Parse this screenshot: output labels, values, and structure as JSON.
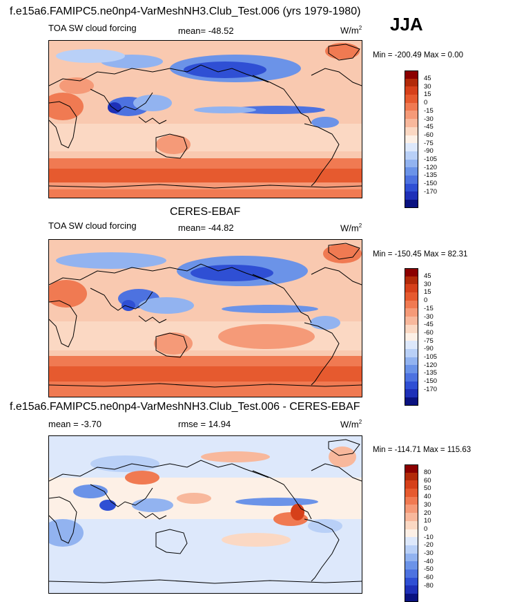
{
  "header": {
    "title": "f.e15a6.FAMIPC5.ne0np4-VarMeshNH3.Club_Test.006 (yrs 1979-1980)",
    "season": "JJA"
  },
  "panels": [
    {
      "heading": "",
      "left_label": "TOA SW cloud forcing",
      "mean_label": "mean= -48.52",
      "units": "W/m",
      "units_sup": "2",
      "minmax": "Min = -200.49 Max =   0.00",
      "palette": "panel_palette",
      "ticks": [
        "45",
        "30",
        "15",
        "0",
        "-15",
        "-30",
        "-45",
        "-60",
        "-75",
        "-90",
        "-105",
        "-120",
        "-135",
        "-150",
        "-170"
      ]
    },
    {
      "heading": "CERES-EBAF",
      "left_label": "TOA SW cloud forcing",
      "mean_label": "mean= -44.82",
      "units": "W/m",
      "units_sup": "2",
      "minmax": "Min = -150.45 Max =  82.31",
      "palette": "panel_palette",
      "ticks": [
        "45",
        "30",
        "15",
        "0",
        "-15",
        "-30",
        "-45",
        "-60",
        "-75",
        "-90",
        "-105",
        "-120",
        "-135",
        "-150",
        "-170"
      ]
    },
    {
      "heading": "f.e15a6.FAMIPC5.ne0np4-VarMeshNH3.Club_Test.006 - CERES-EBAF",
      "left_label": "mean =  -3.70",
      "mean_label": "rmse =  14.94",
      "units": "W/m",
      "units_sup": "2",
      "minmax": "Min = -114.71 Max = 115.63",
      "palette": "diff_palette",
      "ticks": [
        "80",
        "60",
        "50",
        "40",
        "30",
        "20",
        "10",
        "0",
        "-10",
        "-20",
        "-30",
        "-40",
        "-50",
        "-60",
        "-80"
      ]
    }
  ],
  "colors": {
    "panel_palette": [
      "#8b0000",
      "#b22a09",
      "#d6401a",
      "#e65a2f",
      "#f07a52",
      "#f59a78",
      "#f8b89c",
      "#fbd8c3",
      "#fdf0e6",
      "#dde8fb",
      "#b9d0f7",
      "#92b3f0",
      "#6b93e8",
      "#4d72e0",
      "#2f4fd4",
      "#1e30b8",
      "#0a1280"
    ],
    "diff_palette": [
      "#8b0000",
      "#b22a09",
      "#d6401a",
      "#e65a2f",
      "#f07a52",
      "#f59a78",
      "#f8b89c",
      "#fbd8c3",
      "#fdf0e6",
      "#dde8fb",
      "#b9d0f7",
      "#92b3f0",
      "#6b93e8",
      "#4d72e0",
      "#2f4fd4",
      "#1e30b8",
      "#0a1280"
    ]
  }
}
